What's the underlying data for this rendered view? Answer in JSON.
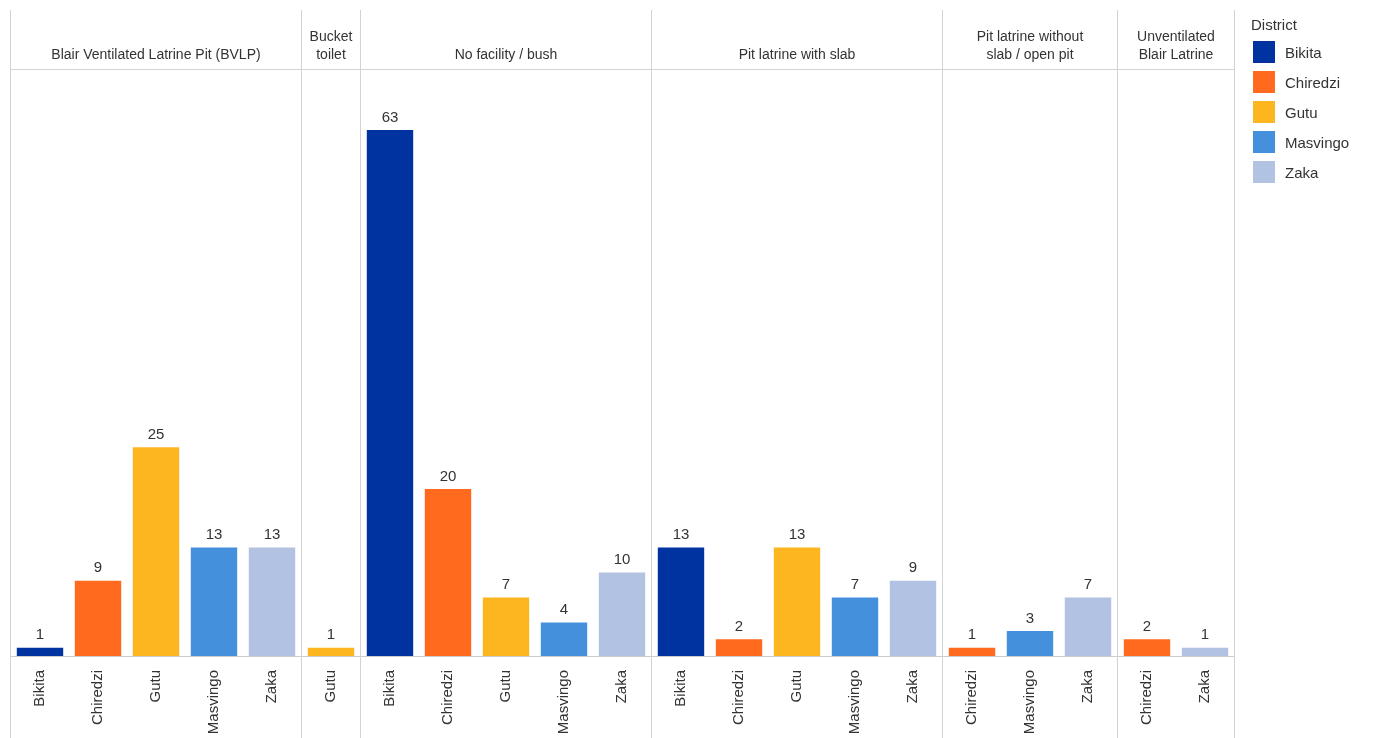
{
  "chart_data": [
    {
      "type": "bar",
      "title": "Blair Ventilated Latrine Pit (BVLP)",
      "categories": [
        "Bikita",
        "Chiredzi",
        "Gutu",
        "Masvingo",
        "Zaka"
      ],
      "series": [
        {
          "name": "Bikita",
          "color": "#0033a0",
          "values": [
            1,
            null,
            null,
            null,
            null
          ]
        },
        {
          "name": "Chiredzi",
          "color": "#ff6a1f",
          "values": [
            null,
            9,
            null,
            null,
            null
          ]
        },
        {
          "name": "Gutu",
          "color": "#fdb61f",
          "values": [
            null,
            null,
            25,
            null,
            null
          ]
        },
        {
          "name": "Masvingo",
          "color": "#4590dc",
          "values": [
            null,
            null,
            null,
            13,
            null
          ]
        },
        {
          "name": "Zaka",
          "color": "#b1c2e2",
          "values": [
            null,
            null,
            null,
            null,
            13
          ]
        }
      ],
      "data_labels": true,
      "tick_labels": "x",
      "legend": "right",
      "legend_title": "District"
    },
    {
      "type": "bar",
      "title": "Bucket toilet",
      "categories": [
        "Gutu"
      ],
      "series": [
        {
          "name": "Gutu",
          "color": "#fdb61f",
          "values": [
            1
          ]
        }
      ],
      "data_labels": true,
      "tick_labels": "x"
    },
    {
      "type": "bar",
      "title": "No facility / bush",
      "categories": [
        "Bikita",
        "Chiredzi",
        "Gutu",
        "Masvingo",
        "Zaka"
      ],
      "series": [
        {
          "name": "Bikita",
          "color": "#0033a0",
          "values": [
            63,
            null,
            null,
            null,
            null
          ]
        },
        {
          "name": "Chiredzi",
          "color": "#ff6a1f",
          "values": [
            null,
            20,
            null,
            null,
            null
          ]
        },
        {
          "name": "Gutu",
          "color": "#fdb61f",
          "values": [
            null,
            null,
            7,
            null,
            null
          ]
        },
        {
          "name": "Masvingo",
          "color": "#4590dc",
          "values": [
            null,
            null,
            null,
            4,
            null
          ]
        },
        {
          "name": "Zaka",
          "color": "#b1c2e2",
          "values": [
            null,
            null,
            null,
            null,
            10
          ]
        }
      ],
      "data_labels": true,
      "tick_labels": "x"
    },
    {
      "type": "bar",
      "title": "Pit latrine with slab",
      "categories": [
        "Bikita",
        "Chiredzi",
        "Gutu",
        "Masvingo",
        "Zaka"
      ],
      "series": [
        {
          "name": "Bikita",
          "color": "#0033a0",
          "values": [
            13,
            null,
            null,
            null,
            null
          ]
        },
        {
          "name": "Chiredzi",
          "color": "#ff6a1f",
          "values": [
            null,
            2,
            null,
            null,
            null
          ]
        },
        {
          "name": "Gutu",
          "color": "#fdb61f",
          "values": [
            null,
            null,
            13,
            null,
            null
          ]
        },
        {
          "name": "Masvingo",
          "color": "#4590dc",
          "values": [
            null,
            null,
            null,
            7,
            null
          ]
        },
        {
          "name": "Zaka",
          "color": "#b1c2e2",
          "values": [
            null,
            null,
            null,
            null,
            9
          ]
        }
      ],
      "data_labels": true,
      "tick_labels": "x"
    },
    {
      "type": "bar",
      "title": "Pit latrine without slab / open pit",
      "categories": [
        "Chiredzi",
        "Masvingo",
        "Zaka"
      ],
      "series": [
        {
          "name": "Chiredzi",
          "color": "#ff6a1f",
          "values": [
            1,
            null,
            null
          ]
        },
        {
          "name": "Masvingo",
          "color": "#4590dc",
          "values": [
            null,
            3,
            null
          ]
        },
        {
          "name": "Zaka",
          "color": "#b1c2e2",
          "values": [
            null,
            null,
            7
          ]
        }
      ],
      "data_labels": true,
      "tick_labels": "x"
    },
    {
      "type": "bar",
      "title": "Unventilated Blair Latrine",
      "categories": [
        "Chiredzi",
        "Zaka"
      ],
      "series": [
        {
          "name": "Chiredzi",
          "color": "#ff6a1f",
          "values": [
            2,
            null
          ]
        },
        {
          "name": "Zaka",
          "color": "#b1c2e2",
          "values": [
            null,
            1
          ]
        }
      ],
      "data_labels": true,
      "tick_labels": "x"
    }
  ]
}
